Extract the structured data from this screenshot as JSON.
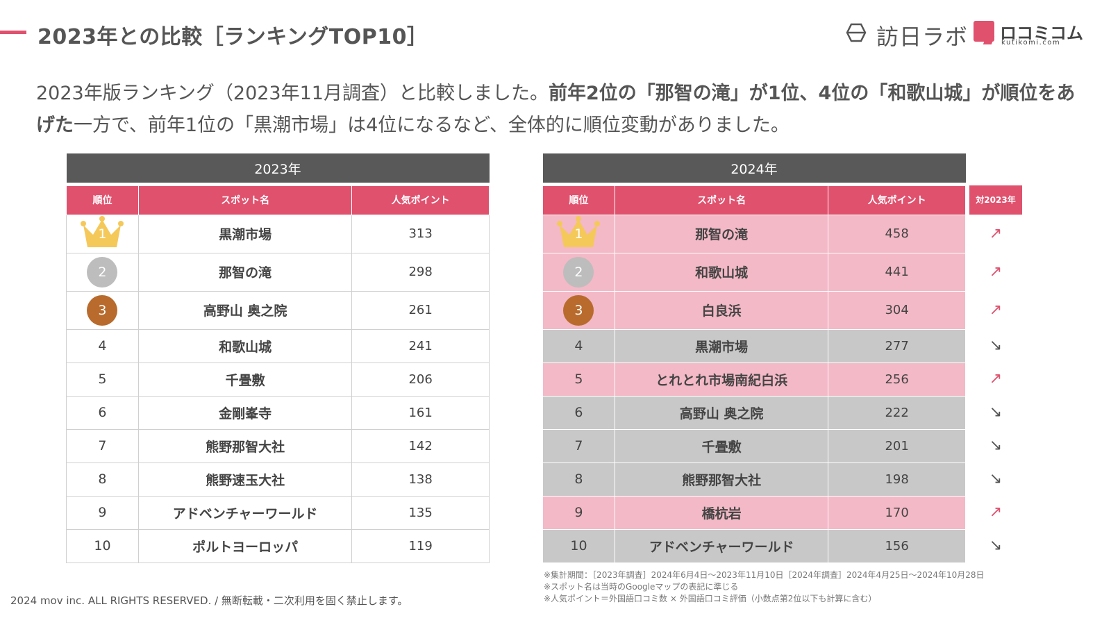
{
  "header": {
    "title": "2023年との比較［ランキングTOP10］",
    "brand": "訪日ラボ",
    "kuchikomi": "ロコミコム",
    "kuchikomi_sub": "kutikomi.com"
  },
  "lead": {
    "part1": "2023年版ランキング（2023年11月調査）と比較しました。",
    "bold1": "前年2位の「那智の滝」が1位、4位の「和歌山城」が順位をあげた",
    "part2": "一方で、前年1位の「黒潮市場」は4位になるなど、全体的に順位変動がありました。"
  },
  "table_2023": {
    "year_label": "2023年",
    "columns": [
      "順位",
      "スポット名",
      "人気ポイント"
    ],
    "rows": [
      {
        "rank": "1",
        "spot": "黒潮市場",
        "points": "313"
      },
      {
        "rank": "2",
        "spot": "那智の滝",
        "points": "298"
      },
      {
        "rank": "3",
        "spot": "高野山 奥之院",
        "points": "261"
      },
      {
        "rank": "4",
        "spot": "和歌山城",
        "points": "241"
      },
      {
        "rank": "5",
        "spot": "千畳敷",
        "points": "206"
      },
      {
        "rank": "6",
        "spot": "金剛峯寺",
        "points": "161"
      },
      {
        "rank": "7",
        "spot": "熊野那智大社",
        "points": "142"
      },
      {
        "rank": "8",
        "spot": "熊野速玉大社",
        "points": "138"
      },
      {
        "rank": "9",
        "spot": "アドベンチャーワールド",
        "points": "135"
      },
      {
        "rank": "10",
        "spot": "ポルトヨーロッパ",
        "points": "119"
      }
    ]
  },
  "table_2024": {
    "year_label": "2024年",
    "columns": [
      "順位",
      "スポット名",
      "人気ポイント"
    ],
    "change_header": "対2023年",
    "rows": [
      {
        "rank": "1",
        "spot": "那智の滝",
        "points": "458",
        "change": "↗",
        "trend": "up"
      },
      {
        "rank": "2",
        "spot": "和歌山城",
        "points": "441",
        "change": "↗",
        "trend": "up"
      },
      {
        "rank": "3",
        "spot": "白良浜",
        "points": "304",
        "change": "↗",
        "trend": "up"
      },
      {
        "rank": "4",
        "spot": "黒潮市場",
        "points": "277",
        "change": "↘",
        "trend": "down"
      },
      {
        "rank": "5",
        "spot": "とれとれ市場南紀白浜",
        "points": "256",
        "change": "↗",
        "trend": "up"
      },
      {
        "rank": "6",
        "spot": "高野山 奥之院",
        "points": "222",
        "change": "↘",
        "trend": "down"
      },
      {
        "rank": "7",
        "spot": "千畳敷",
        "points": "201",
        "change": "↘",
        "trend": "down"
      },
      {
        "rank": "8",
        "spot": "熊野那智大社",
        "points": "198",
        "change": "↘",
        "trend": "down"
      },
      {
        "rank": "9",
        "spot": "橋杭岩",
        "points": "170",
        "change": "↗",
        "trend": "up"
      },
      {
        "rank": "10",
        "spot": "アドベンチャーワールド",
        "points": "156",
        "change": "↘",
        "trend": "down"
      }
    ]
  },
  "notes": [
    "※集計期間：［2023年調査］2024年6月4日〜2023年11月10日［2024年調査］2024年4月25日〜2024年10月28日",
    "※スポット名は当時のGoogleマップの表記に準じる",
    "※人気ポイント＝外国語口コミ数 × 外国語口コミ評価（小数点第2位以下も計算に含む）"
  ],
  "copyright": "2024 mov inc. ALL RIGHTS RESERVED. / 無断転載・二次利用を固く禁止します。",
  "colors": {
    "accent": "#e0516e",
    "header_gray": "#595959",
    "row_up": "#f3b9c6",
    "row_down": "#c8c8c8",
    "gold": "#f5c85a",
    "silver": "#bdbdbd",
    "bronze": "#b86b2c"
  }
}
